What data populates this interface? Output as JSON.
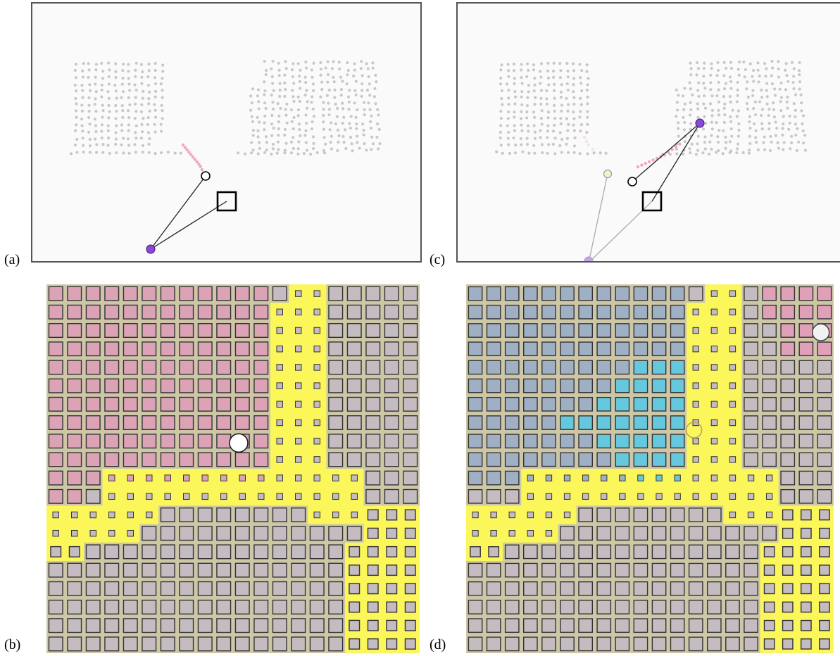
{
  "panels": [
    {
      "id": "a",
      "label": "(a)"
    },
    {
      "id": "b",
      "label": "(b)"
    },
    {
      "id": "c",
      "label": "(c)"
    },
    {
      "id": "d",
      "label": "(d)"
    }
  ],
  "colors": {
    "canvas_bg": "#fafafa",
    "dot": "#c8c8c8",
    "trail": "#f0a8c0",
    "pointer": "#8a48d8",
    "grid_yellow": "#fbf75a",
    "grid_bg": "#cdc7a8",
    "cell_pink": "#dca2b6",
    "cell_gray": "#c4bcc0",
    "cell_blue": "#9fb0c4",
    "cell_cyan": "#66c8dc",
    "cell_pinkstrong": "#e0a0b8"
  },
  "icons": {
    "pointer_a": "purple-dot-icon",
    "cursor_ring": "circle-icon",
    "target_box": "square-icon",
    "grid_marker": "white-circle-icon",
    "grid_marker_faded": "ring-icon"
  }
}
